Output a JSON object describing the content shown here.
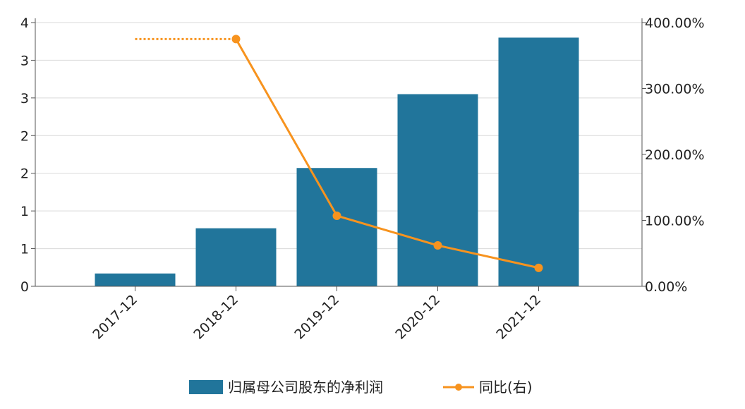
{
  "chart_data": {
    "type": "bar",
    "categories": [
      "2017-12",
      "2018-12",
      "2019-12",
      "2020-12",
      "2021-12"
    ],
    "series": [
      {
        "name": "归属母公司股东的净利润",
        "type": "bar",
        "axis": "left",
        "color": "#21759b",
        "values": [
          0.17,
          0.77,
          1.57,
          2.55,
          3.3
        ]
      },
      {
        "name": "同比(右)",
        "type": "line",
        "axis": "right",
        "color": "#f7931e",
        "values": [
          null,
          375.0,
          107.0,
          62.0,
          28.0
        ],
        "dotted_lead": true
      }
    ],
    "left_axis": {
      "ylim": [
        0,
        3.5
      ],
      "ticks": [
        0,
        0.5,
        1,
        1.5,
        2,
        2.5,
        3,
        3.5
      ],
      "tick_labels": [
        "0",
        "1",
        "1",
        "2",
        "2",
        "3",
        "3",
        "4"
      ]
    },
    "right_axis": {
      "ylim": [
        0,
        400
      ],
      "ticks": [
        0,
        100,
        200,
        300,
        400
      ],
      "tick_labels": [
        "0.00%",
        "100.00%",
        "200.00%",
        "300.00%",
        "400.00%"
      ]
    },
    "grid": true,
    "legend_position": "bottom-center"
  }
}
